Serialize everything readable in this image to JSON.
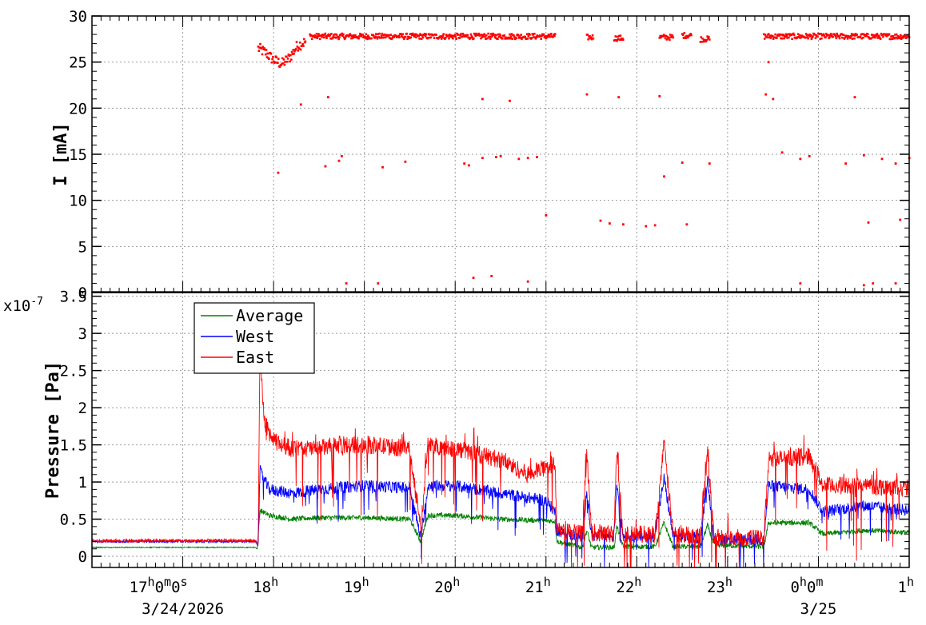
{
  "chart_data": [
    {
      "type": "scatter",
      "ylabel": "I [mA]",
      "ylim": [
        0,
        30
      ],
      "yticks": [
        0,
        5,
        10,
        15,
        20,
        25,
        30
      ],
      "ytick_labels": [
        "0",
        "5",
        "10",
        "15",
        "20",
        "25",
        "30"
      ],
      "grid": true,
      "marker_color": "#ff0000",
      "series": [
        {
          "baseline": [
            {
              "from": 16.0,
              "to": 25.0,
              "y": 0
            }
          ],
          "main_bands": [
            {
              "from": 17.83,
              "to": 18.35,
              "y": [
                26.5,
                26.0,
                25.2,
                24.8,
                25.5,
                26.8,
                27.2
              ]
            },
            {
              "from": 18.4,
              "to": 21.1,
              "y": 27.8
            },
            {
              "from": 21.45,
              "to": 21.52,
              "y": 27.7
            },
            {
              "from": 21.75,
              "to": 21.85,
              "y": 27.6
            },
            {
              "from": 22.25,
              "to": 22.4,
              "y": 27.7
            },
            {
              "from": 22.5,
              "to": 22.6,
              "y": 27.9
            },
            {
              "from": 22.7,
              "to": 22.8,
              "y": 27.5
            },
            {
              "from": 23.4,
              "to": 25.0,
              "y": 27.8
            }
          ],
          "points": [
            [
              18.05,
              13.0
            ],
            [
              18.3,
              20.4
            ],
            [
              18.6,
              21.2
            ],
            [
              18.57,
              13.7
            ],
            [
              18.72,
              14.3
            ],
            [
              18.75,
              14.8
            ],
            [
              19.2,
              13.6
            ],
            [
              19.45,
              14.2
            ],
            [
              20.1,
              14.0
            ],
            [
              20.15,
              13.8
            ],
            [
              20.3,
              14.6
            ],
            [
              20.3,
              21.0
            ],
            [
              20.45,
              14.7
            ],
            [
              20.5,
              14.8
            ],
            [
              20.6,
              20.8
            ],
            [
              20.7,
              14.5
            ],
            [
              20.8,
              14.6
            ],
            [
              20.9,
              14.7
            ],
            [
              21.0,
              8.4
            ],
            [
              21.45,
              21.5
            ],
            [
              21.6,
              7.8
            ],
            [
              21.7,
              7.5
            ],
            [
              21.8,
              21.2
            ],
            [
              21.85,
              7.4
            ],
            [
              22.1,
              7.2
            ],
            [
              22.2,
              7.3
            ],
            [
              22.25,
              21.3
            ],
            [
              22.3,
              12.6
            ],
            [
              22.5,
              14.1
            ],
            [
              22.55,
              7.4
            ],
            [
              22.8,
              14.0
            ],
            [
              23.42,
              21.5
            ],
            [
              23.45,
              25.0
            ],
            [
              23.5,
              21.0
            ],
            [
              23.6,
              15.2
            ],
            [
              23.8,
              14.5
            ],
            [
              23.9,
              14.8
            ],
            [
              24.3,
              14.0
            ],
            [
              24.4,
              21.2
            ],
            [
              24.5,
              14.9
            ],
            [
              24.55,
              7.6
            ],
            [
              24.7,
              14.5
            ],
            [
              24.85,
              14.0
            ],
            [
              24.9,
              7.9
            ],
            [
              25.0,
              14.6
            ],
            [
              18.8,
              1.0
            ],
            [
              19.15,
              1.0
            ],
            [
              20.2,
              1.6
            ],
            [
              20.4,
              1.8
            ],
            [
              20.8,
              1.2
            ],
            [
              23.8,
              1.0
            ],
            [
              24.5,
              0.8
            ],
            [
              24.6,
              1.0
            ],
            [
              24.85,
              1.0
            ]
          ]
        }
      ]
    },
    {
      "type": "line",
      "ylabel": "Pressure [Pa]",
      "ylim": [
        -0.15,
        3.55
      ],
      "y_multiplier_label": "x10",
      "y_multiplier_exponent": "-7",
      "yticks": [
        0,
        0.5,
        1,
        1.5,
        2,
        2.5,
        3,
        3.5
      ],
      "ytick_labels": [
        "0",
        "0.5",
        "1",
        "1.5",
        "2",
        "2.5",
        "3",
        "3.5"
      ],
      "grid": true,
      "legend": {
        "placement": "top-left"
      },
      "x_range": [
        16.0,
        25.0
      ],
      "xticks": [
        {
          "hour": 17.0,
          "base": "17",
          "sup1": "h",
          "mid": "0",
          "sup2": "m",
          "end": "0",
          "sup3": "s"
        },
        {
          "hour": 18.0,
          "base": "18",
          "sup1": "h"
        },
        {
          "hour": 19.0,
          "base": "19",
          "sup1": "h"
        },
        {
          "hour": 20.0,
          "base": "20",
          "sup1": "h"
        },
        {
          "hour": 21.0,
          "base": "21",
          "sup1": "h"
        },
        {
          "hour": 22.0,
          "base": "22",
          "sup1": "h"
        },
        {
          "hour": 23.0,
          "base": "23",
          "sup1": "h"
        },
        {
          "hour": 24.0,
          "base": "0",
          "sup1": "h",
          "mid": "0",
          "sup2": "m"
        },
        {
          "hour": 25.0,
          "base": "1",
          "sup1": "h"
        }
      ],
      "date_labels": [
        {
          "hour": 17.0,
          "text": "3/24/2026"
        },
        {
          "hour": 24.0,
          "text": "3/25"
        }
      ],
      "series": [
        {
          "name": "Average",
          "color": "#008000",
          "noise": 0.035,
          "points": [
            [
              16.0,
              0.12
            ],
            [
              17.8,
              0.12
            ],
            [
              17.82,
              0.1
            ],
            [
              17.85,
              0.62
            ],
            [
              17.95,
              0.55
            ],
            [
              18.2,
              0.5
            ],
            [
              18.5,
              0.52
            ],
            [
              19.0,
              0.52
            ],
            [
              19.5,
              0.5
            ],
            [
              19.62,
              0.2
            ],
            [
              19.7,
              0.55
            ],
            [
              20.0,
              0.55
            ],
            [
              20.5,
              0.5
            ],
            [
              21.0,
              0.48
            ],
            [
              21.1,
              0.47
            ],
            [
              21.12,
              0.2
            ],
            [
              21.4,
              0.12
            ],
            [
              21.45,
              0.35
            ],
            [
              21.5,
              0.12
            ],
            [
              21.75,
              0.12
            ],
            [
              21.78,
              0.4
            ],
            [
              21.85,
              0.13
            ],
            [
              22.2,
              0.13
            ],
            [
              22.3,
              0.45
            ],
            [
              22.4,
              0.13
            ],
            [
              22.7,
              0.13
            ],
            [
              22.78,
              0.42
            ],
            [
              22.85,
              0.15
            ],
            [
              23.4,
              0.13
            ],
            [
              23.45,
              0.45
            ],
            [
              23.9,
              0.45
            ],
            [
              24.05,
              0.3
            ],
            [
              24.5,
              0.35
            ],
            [
              25.0,
              0.32
            ]
          ]
        },
        {
          "name": "West",
          "color": "#0000ff",
          "noise": 0.08,
          "points": [
            [
              16.0,
              0.2
            ],
            [
              17.8,
              0.2
            ],
            [
              17.83,
              0.15
            ],
            [
              17.85,
              1.15
            ],
            [
              17.95,
              0.9
            ],
            [
              18.2,
              0.85
            ],
            [
              18.5,
              0.9
            ],
            [
              19.0,
              0.95
            ],
            [
              19.5,
              0.92
            ],
            [
              19.62,
              0.25
            ],
            [
              19.7,
              0.95
            ],
            [
              20.0,
              0.95
            ],
            [
              20.5,
              0.85
            ],
            [
              21.0,
              0.75
            ],
            [
              21.1,
              0.6
            ],
            [
              21.12,
              0.35
            ],
            [
              21.4,
              0.25
            ],
            [
              21.45,
              0.9
            ],
            [
              21.5,
              0.28
            ],
            [
              21.75,
              0.28
            ],
            [
              21.78,
              1.0
            ],
            [
              21.85,
              0.27
            ],
            [
              22.2,
              0.27
            ],
            [
              22.3,
              1.05
            ],
            [
              22.4,
              0.27
            ],
            [
              22.7,
              0.25
            ],
            [
              22.78,
              1.05
            ],
            [
              22.85,
              0.24
            ],
            [
              23.4,
              0.22
            ],
            [
              23.45,
              0.95
            ],
            [
              23.9,
              0.9
            ],
            [
              24.05,
              0.6
            ],
            [
              24.5,
              0.68
            ],
            [
              25.0,
              0.62
            ]
          ]
        },
        {
          "name": "East",
          "color": "#ff0000",
          "noise": 0.12,
          "points": [
            [
              16.0,
              0.21
            ],
            [
              17.8,
              0.21
            ],
            [
              17.83,
              0.15
            ],
            [
              17.85,
              2.7
            ],
            [
              17.9,
              1.8
            ],
            [
              18.0,
              1.55
            ],
            [
              18.2,
              1.45
            ],
            [
              18.5,
              1.45
            ],
            [
              18.7,
              1.5
            ],
            [
              19.0,
              1.5
            ],
            [
              19.5,
              1.45
            ],
            [
              19.62,
              0.35
            ],
            [
              19.7,
              1.5
            ],
            [
              20.0,
              1.45
            ],
            [
              20.5,
              1.3
            ],
            [
              20.8,
              1.1
            ],
            [
              21.0,
              1.2
            ],
            [
              21.1,
              1.25
            ],
            [
              21.12,
              0.4
            ],
            [
              21.4,
              0.3
            ],
            [
              21.45,
              1.4
            ],
            [
              21.5,
              0.32
            ],
            [
              21.75,
              0.3
            ],
            [
              21.78,
              1.45
            ],
            [
              21.85,
              0.3
            ],
            [
              22.2,
              0.3
            ],
            [
              22.3,
              1.5
            ],
            [
              22.4,
              0.3
            ],
            [
              22.7,
              0.28
            ],
            [
              22.78,
              1.4
            ],
            [
              22.85,
              0.26
            ],
            [
              23.4,
              0.24
            ],
            [
              23.45,
              1.3
            ],
            [
              23.9,
              1.35
            ],
            [
              24.05,
              0.95
            ],
            [
              24.5,
              0.95
            ],
            [
              25.0,
              0.92
            ]
          ]
        }
      ]
    }
  ]
}
